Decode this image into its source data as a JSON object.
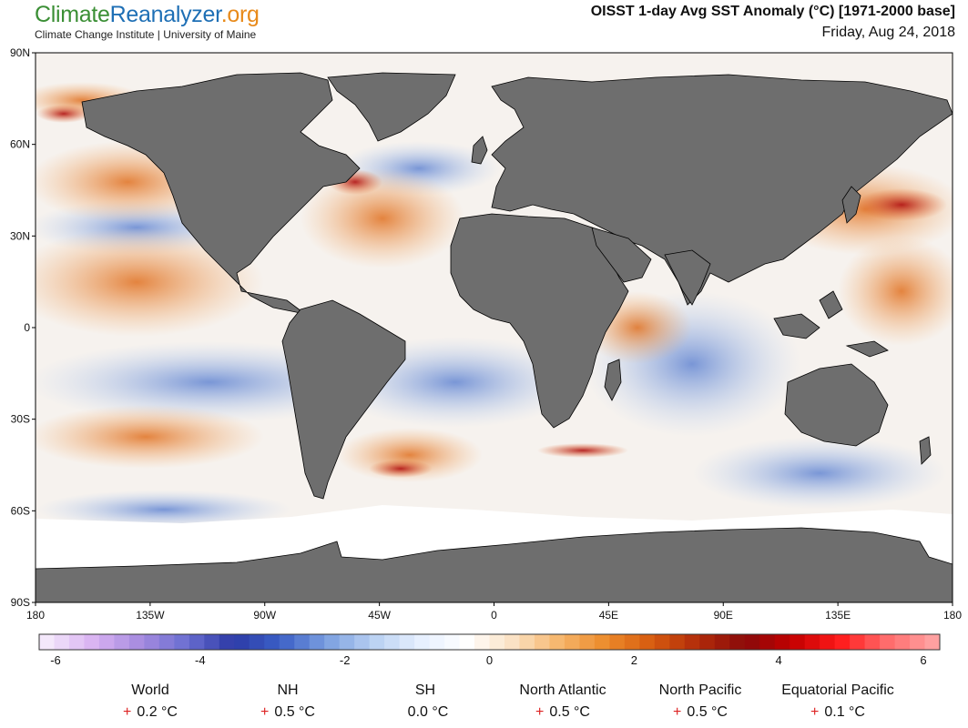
{
  "header": {
    "logo_part1": "Climate",
    "logo_part2": "Reanalyzer",
    "logo_part3": ".org",
    "subtitle": "Climate Change Institute | University of Maine",
    "title": "OISST 1-day Avg SST Anomaly (°C) [1971-2000 base]",
    "date": "Friday, Aug 24, 2018"
  },
  "map": {
    "lat_labels": [
      "90N",
      "60N",
      "30N",
      "0",
      "30S",
      "60S",
      "90S"
    ],
    "lat_values": [
      90,
      60,
      30,
      0,
      -30,
      -60,
      -90
    ],
    "lon_labels": [
      "180",
      "135W",
      "90W",
      "45W",
      "0",
      "45E",
      "90E",
      "135E",
      "180"
    ],
    "lon_values": [
      -180,
      -135,
      -90,
      -45,
      0,
      45,
      90,
      135,
      180
    ],
    "colors": {
      "land": "#6e6e6e",
      "ice": "#ffffff",
      "coast": "#000000"
    }
  },
  "colorbar": {
    "min": -6,
    "max": 6,
    "tick_labels": [
      "-6",
      "-4",
      "-2",
      "0",
      "2",
      "4",
      "6"
    ],
    "tick_values": [
      -6,
      -4,
      -2,
      0,
      2,
      4,
      6
    ],
    "stops": [
      "#f4e8fb",
      "#d9b3f2",
      "#a78be0",
      "#6b6fd1",
      "#2c3aa6",
      "#3b5fc6",
      "#7b9fe0",
      "#b8d0f2",
      "#e6efff",
      "#ffffff",
      "#fbe2c4",
      "#f6b66c",
      "#ec8b2a",
      "#d65a0f",
      "#b02a0a",
      "#8a0a0a",
      "#c40000",
      "#ff1a1a",
      "#ff6a6a",
      "#ffa0a0"
    ]
  },
  "stats": [
    {
      "label": "World",
      "sign": "+",
      "value": "0.2 °C"
    },
    {
      "label": "NH",
      "sign": "+",
      "value": "0.5 °C"
    },
    {
      "label": "SH",
      "sign": "",
      "value": "0.0 °C"
    },
    {
      "label": "North Atlantic",
      "sign": "+",
      "value": "0.5 °C"
    },
    {
      "label": "North Pacific",
      "sign": "+",
      "value": "0.5 °C"
    },
    {
      "label": "Equatorial Pacific",
      "sign": "+",
      "value": "0.1 °C"
    }
  ]
}
